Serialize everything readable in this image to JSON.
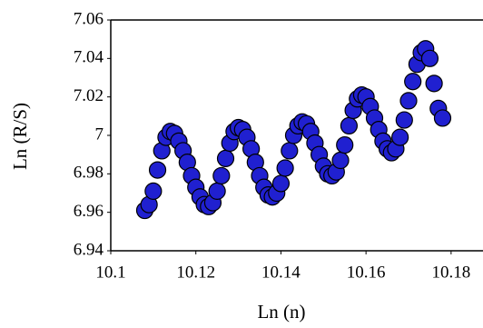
{
  "chart_data": {
    "type": "scatter",
    "x_label": "Ln (n)",
    "y_label": "Ln (R/S)",
    "xlim": [
      10.1,
      10.1875
    ],
    "ylim": [
      6.94,
      7.06
    ],
    "xticks": [
      10.1,
      10.12,
      10.14,
      10.16,
      10.18
    ],
    "yticks": [
      6.94,
      6.96,
      6.98,
      7,
      7.02,
      7.04,
      7.06
    ],
    "grid": false,
    "series": [
      {
        "color": "#2020d0",
        "x": [
          10.108,
          10.109,
          10.11,
          10.111,
          10.112,
          10.113,
          10.114,
          10.115,
          10.116,
          10.117,
          10.118,
          10.119,
          10.12,
          10.121,
          10.122,
          10.123,
          10.124,
          10.125,
          10.126,
          10.127,
          10.128,
          10.129,
          10.13,
          10.131,
          10.132,
          10.133,
          10.134,
          10.135,
          10.136,
          10.137,
          10.138,
          10.139,
          10.14,
          10.141,
          10.142,
          10.143,
          10.144,
          10.145,
          10.146,
          10.147,
          10.148,
          10.149,
          10.15,
          10.151,
          10.152,
          10.153,
          10.154,
          10.155,
          10.156,
          10.157,
          10.158,
          10.159,
          10.16,
          10.161,
          10.162,
          10.163,
          10.164,
          10.165,
          10.166,
          10.167,
          10.168,
          10.169,
          10.17,
          10.171,
          10.172,
          10.173,
          10.174,
          10.175,
          10.176,
          10.177,
          10.178
        ],
        "values": [
          6.961,
          6.964,
          6.971,
          6.982,
          6.992,
          6.999,
          7.002,
          7.001,
          6.997,
          6.992,
          6.986,
          6.979,
          6.973,
          6.968,
          6.964,
          6.963,
          6.965,
          6.971,
          6.979,
          6.988,
          6.996,
          7.002,
          7.004,
          7.003,
          6.999,
          6.993,
          6.986,
          6.979,
          6.973,
          6.969,
          6.968,
          6.97,
          6.975,
          6.983,
          6.992,
          7.0,
          7.005,
          7.007,
          7.006,
          7.002,
          6.996,
          6.99,
          6.984,
          6.98,
          6.979,
          6.981,
          6.987,
          6.995,
          7.005,
          7.013,
          7.019,
          7.021,
          7.02,
          7.015,
          7.009,
          7.003,
          6.997,
          6.993,
          6.991,
          6.993,
          6.999,
          7.008,
          7.018,
          7.028,
          7.037,
          7.043,
          7.045,
          7.04,
          7.027,
          7.014,
          7.009
        ]
      }
    ]
  }
}
